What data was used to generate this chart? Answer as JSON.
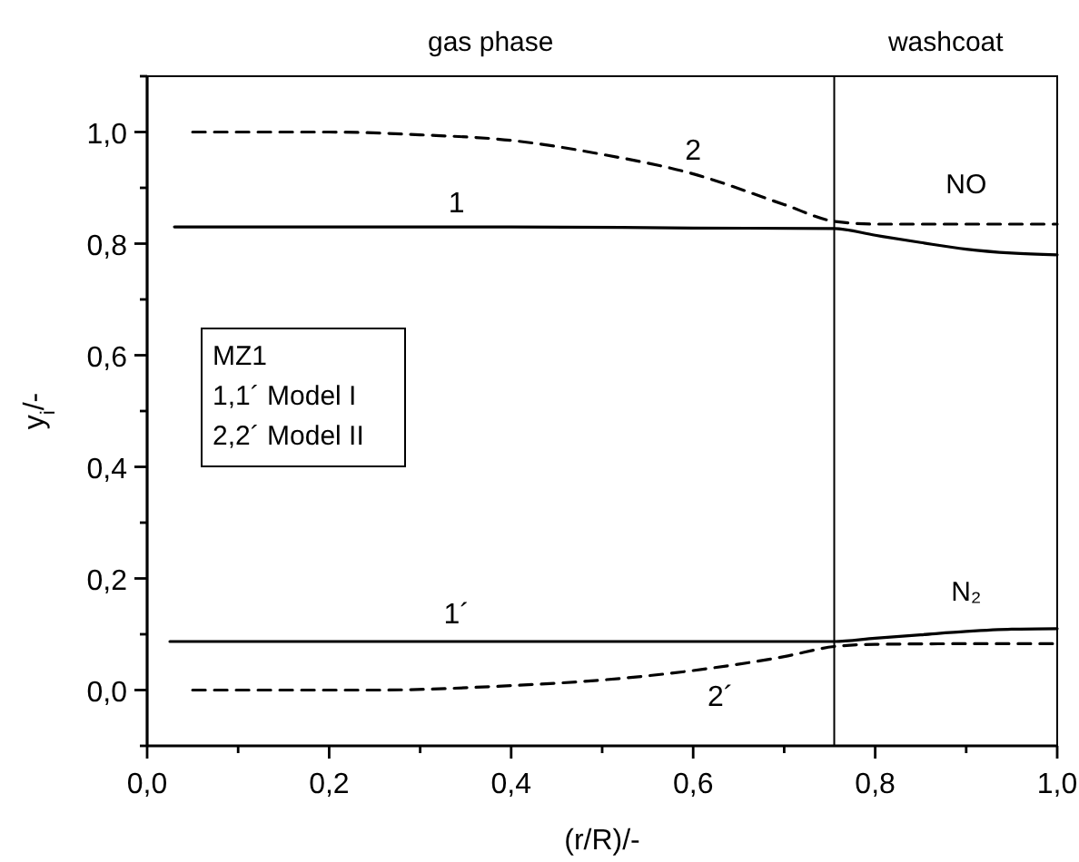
{
  "chart_data": {
    "type": "line",
    "xlabel": "(r/R)/-",
    "ylabel": "y$_{i}$/-",
    "xlim": [
      0,
      1
    ],
    "ylim": [
      -0.1,
      1.1
    ],
    "xticks": [
      {
        "value": 0,
        "label": "0,0"
      },
      {
        "value": 0.1,
        "label": null
      },
      {
        "value": 0.2,
        "label": "0,2"
      },
      {
        "value": 0.3,
        "label": null
      },
      {
        "value": 0.4,
        "label": "0,4"
      },
      {
        "value": 0.5,
        "label": null
      },
      {
        "value": 0.6,
        "label": "0,6"
      },
      {
        "value": 0.7,
        "label": null
      },
      {
        "value": 0.8,
        "label": "0,8"
      },
      {
        "value": 0.9,
        "label": null
      },
      {
        "value": 1,
        "label": "1,0"
      }
    ],
    "yticks": [
      {
        "value": -0.1,
        "label": null
      },
      {
        "value": 0,
        "label": "0,0"
      },
      {
        "value": 0.1,
        "label": null
      },
      {
        "value": 0.2,
        "label": "0,2"
      },
      {
        "value": 0.3,
        "label": null
      },
      {
        "value": 0.4,
        "label": "0,4"
      },
      {
        "value": 0.5,
        "label": null
      },
      {
        "value": 0.6,
        "label": "0,6"
      },
      {
        "value": 0.7,
        "label": null
      },
      {
        "value": 0.8,
        "label": "0,8"
      },
      {
        "value": 0.9,
        "label": null
      },
      {
        "value": 1,
        "label": "1,0"
      },
      {
        "value": 1.1,
        "label": null
      }
    ],
    "grid": false,
    "series": [
      {
        "name": "1",
        "color": "#000000",
        "line_style": "solid",
        "x": [
          0.03,
          0.2,
          0.4,
          0.6,
          0.755,
          0.8,
          0.85,
          0.9,
          0.95,
          1.0
        ],
        "values": [
          0.83,
          0.83,
          0.83,
          0.828,
          0.827,
          0.815,
          0.802,
          0.79,
          0.783,
          0.78
        ]
      },
      {
        "name": "2",
        "color": "#000000",
        "line_style": "dashed",
        "x": [
          0.05,
          0.2,
          0.3,
          0.4,
          0.5,
          0.6,
          0.7,
          0.755,
          0.8,
          0.9,
          1.0
        ],
        "values": [
          1.0,
          1.0,
          0.995,
          0.985,
          0.96,
          0.925,
          0.87,
          0.84,
          0.835,
          0.835,
          0.835
        ]
      },
      {
        "name": "1´",
        "color": "#000000",
        "line_style": "solid",
        "x": [
          0.025,
          0.2,
          0.4,
          0.6,
          0.755,
          0.8,
          0.85,
          0.9,
          0.95,
          1.0
        ],
        "values": [
          0.087,
          0.087,
          0.087,
          0.087,
          0.087,
          0.093,
          0.099,
          0.105,
          0.109,
          0.11
        ]
      },
      {
        "name": "2´",
        "color": "#000000",
        "line_style": "dashed",
        "x": [
          0.05,
          0.25,
          0.4,
          0.5,
          0.6,
          0.7,
          0.755,
          0.8,
          0.9,
          1.0
        ],
        "values": [
          0,
          0,
          0.008,
          0.018,
          0.035,
          0.06,
          0.078,
          0.082,
          0.083,
          0.083
        ]
      }
    ],
    "ref_lines": [
      {
        "axis": "x",
        "value": 0.755,
        "color": "#000000"
      }
    ],
    "annotations": [
      "gas phase",
      "washcoat",
      "NO",
      "N₂",
      "MZ1",
      "1,1´ Model I",
      "2,2´ Model II"
    ]
  }
}
